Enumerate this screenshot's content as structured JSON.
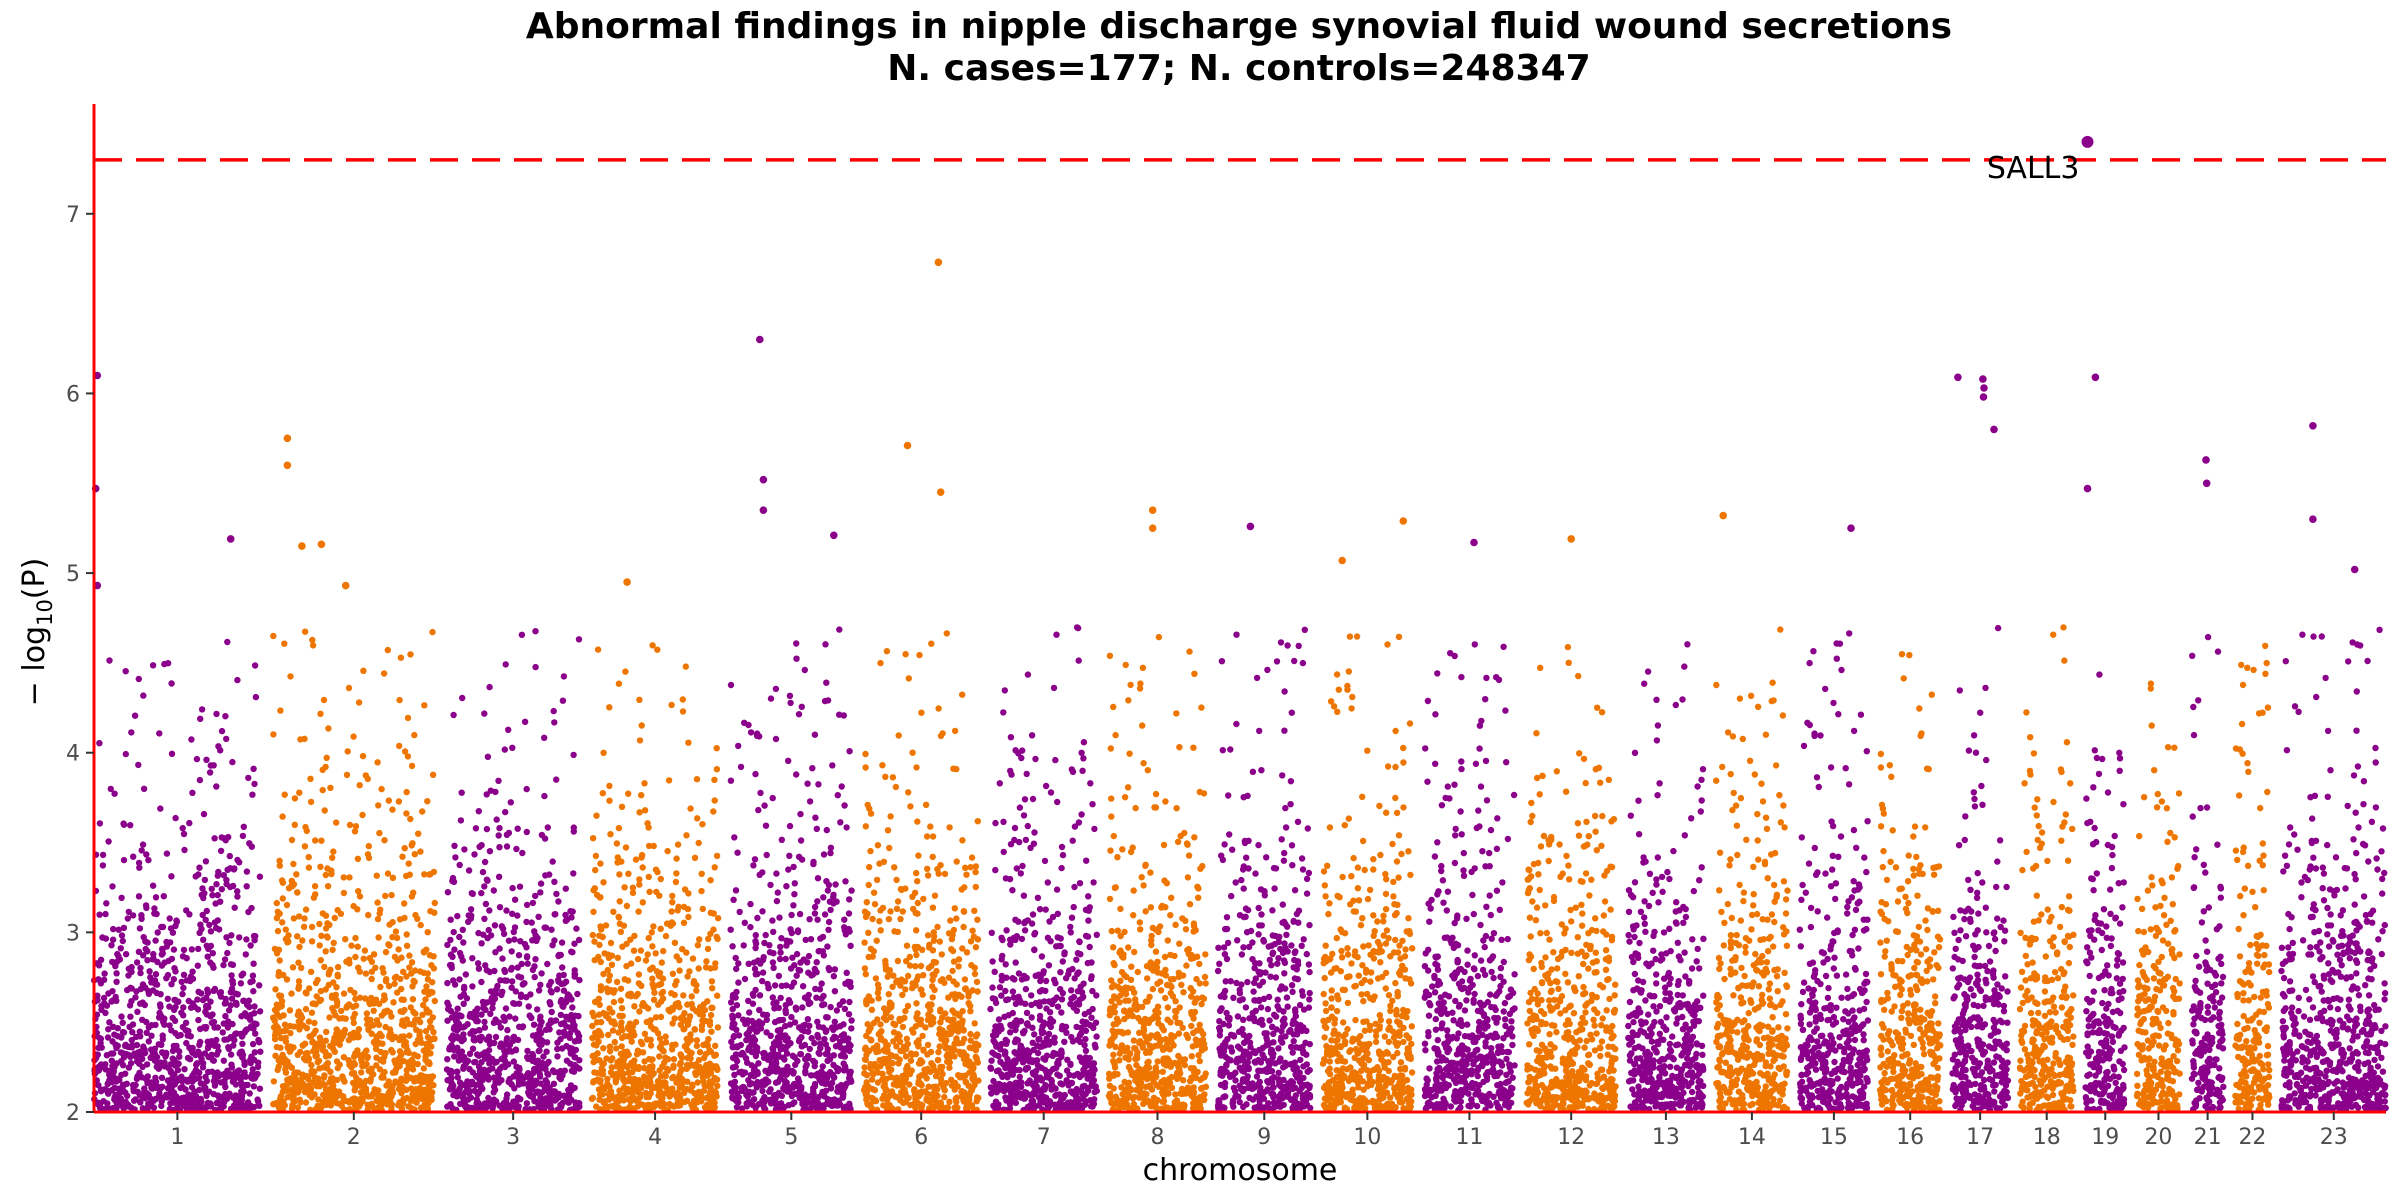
{
  "chart_data": {
    "type": "scatter",
    "subtype": "manhattan",
    "title": "Abnormal findings in nipple discharge synovial fluid wound secretions",
    "subtitle": "N. cases=177; N. controls=248347",
    "xlabel": "chromosome",
    "ylabel_prefix": "− log",
    "ylabel_sub": "10",
    "ylabel_suffix": "(P)",
    "ylim": [
      2,
      7.6
    ],
    "yticks": [
      2,
      3,
      4,
      5,
      6,
      7
    ],
    "grid": false,
    "legend": "none",
    "significance_threshold": 7.3,
    "colors": {
      "odd": "#8B008B",
      "even": "#EE7600",
      "threshold": "#FF0000",
      "axis": "#FF0000"
    },
    "chromosomes": [
      {
        "label": "1",
        "length": 249
      },
      {
        "label": "2",
        "length": 242
      },
      {
        "label": "3",
        "length": 198
      },
      {
        "label": "4",
        "length": 190
      },
      {
        "label": "5",
        "length": 181
      },
      {
        "label": "6",
        "length": 171
      },
      {
        "label": "7",
        "length": 159
      },
      {
        "label": "8",
        "length": 145
      },
      {
        "label": "9",
        "length": 138
      },
      {
        "label": "10",
        "length": 134
      },
      {
        "label": "11",
        "length": 135
      },
      {
        "label": "12",
        "length": 133
      },
      {
        "label": "13",
        "length": 114
      },
      {
        "label": "14",
        "length": 107
      },
      {
        "label": "15",
        "length": 102
      },
      {
        "label": "16",
        "length": 90
      },
      {
        "label": "17",
        "length": 83
      },
      {
        "label": "18",
        "length": 80
      },
      {
        "label": "19",
        "length": 59
      },
      {
        "label": "20",
        "length": 64
      },
      {
        "label": "21",
        "length": 47
      },
      {
        "label": "22",
        "length": 51
      },
      {
        "label": "23",
        "length": 156
      }
    ],
    "top_points": [
      {
        "chr": "1",
        "pos_frac": 0.02,
        "y": 6.1
      },
      {
        "chr": "1",
        "pos_frac": 0.01,
        "y": 5.47
      },
      {
        "chr": "1",
        "pos_frac": 0.02,
        "y": 4.93
      },
      {
        "chr": "1",
        "pos_frac": 0.82,
        "y": 5.19
      },
      {
        "chr": "2",
        "pos_frac": 0.09,
        "y": 5.75
      },
      {
        "chr": "2",
        "pos_frac": 0.09,
        "y": 5.6
      },
      {
        "chr": "2",
        "pos_frac": 0.18,
        "y": 5.15
      },
      {
        "chr": "2",
        "pos_frac": 0.3,
        "y": 5.16
      },
      {
        "chr": "2",
        "pos_frac": 0.45,
        "y": 4.93
      },
      {
        "chr": "4",
        "pos_frac": 0.28,
        "y": 4.95
      },
      {
        "chr": "5",
        "pos_frac": 0.24,
        "y": 6.3
      },
      {
        "chr": "5",
        "pos_frac": 0.27,
        "y": 5.52
      },
      {
        "chr": "5",
        "pos_frac": 0.27,
        "y": 5.35
      },
      {
        "chr": "5",
        "pos_frac": 0.85,
        "y": 5.21
      },
      {
        "chr": "6",
        "pos_frac": 0.38,
        "y": 5.71
      },
      {
        "chr": "6",
        "pos_frac": 0.65,
        "y": 6.73
      },
      {
        "chr": "6",
        "pos_frac": 0.67,
        "y": 5.45
      },
      {
        "chr": "8",
        "pos_frac": 0.45,
        "y": 5.35
      },
      {
        "chr": "8",
        "pos_frac": 0.45,
        "y": 5.25
      },
      {
        "chr": "9",
        "pos_frac": 0.35,
        "y": 5.26
      },
      {
        "chr": "10",
        "pos_frac": 0.22,
        "y": 5.07
      },
      {
        "chr": "10",
        "pos_frac": 0.9,
        "y": 5.29
      },
      {
        "chr": "11",
        "pos_frac": 0.55,
        "y": 5.17
      },
      {
        "chr": "12",
        "pos_frac": 0.5,
        "y": 5.19
      },
      {
        "chr": "14",
        "pos_frac": 0.1,
        "y": 5.32
      },
      {
        "chr": "15",
        "pos_frac": 0.75,
        "y": 5.25
      },
      {
        "chr": "17",
        "pos_frac": 0.1,
        "y": 6.09
      },
      {
        "chr": "17",
        "pos_frac": 0.55,
        "y": 6.08
      },
      {
        "chr": "17",
        "pos_frac": 0.57,
        "y": 6.03
      },
      {
        "chr": "17",
        "pos_frac": 0.56,
        "y": 5.98
      },
      {
        "chr": "17",
        "pos_frac": 0.75,
        "y": 5.8
      },
      {
        "chr": "19",
        "pos_frac": 0.05,
        "y": 7.4
      },
      {
        "chr": "19",
        "pos_frac": 0.05,
        "y": 5.47
      },
      {
        "chr": "19",
        "pos_frac": 0.25,
        "y": 6.09
      },
      {
        "chr": "21",
        "pos_frac": 0.45,
        "y": 5.63
      },
      {
        "chr": "21",
        "pos_frac": 0.47,
        "y": 5.5
      },
      {
        "chr": "23",
        "pos_frac": 0.3,
        "y": 5.82
      },
      {
        "chr": "23",
        "pos_frac": 0.3,
        "y": 5.3
      },
      {
        "chr": "23",
        "pos_frac": 0.7,
        "y": 5.02
      }
    ],
    "annotations": [
      {
        "label": "SALL3",
        "chr": "19",
        "pos_frac": 0.05,
        "y": 7.4
      }
    ],
    "noise_points_per_mb": 4
  }
}
